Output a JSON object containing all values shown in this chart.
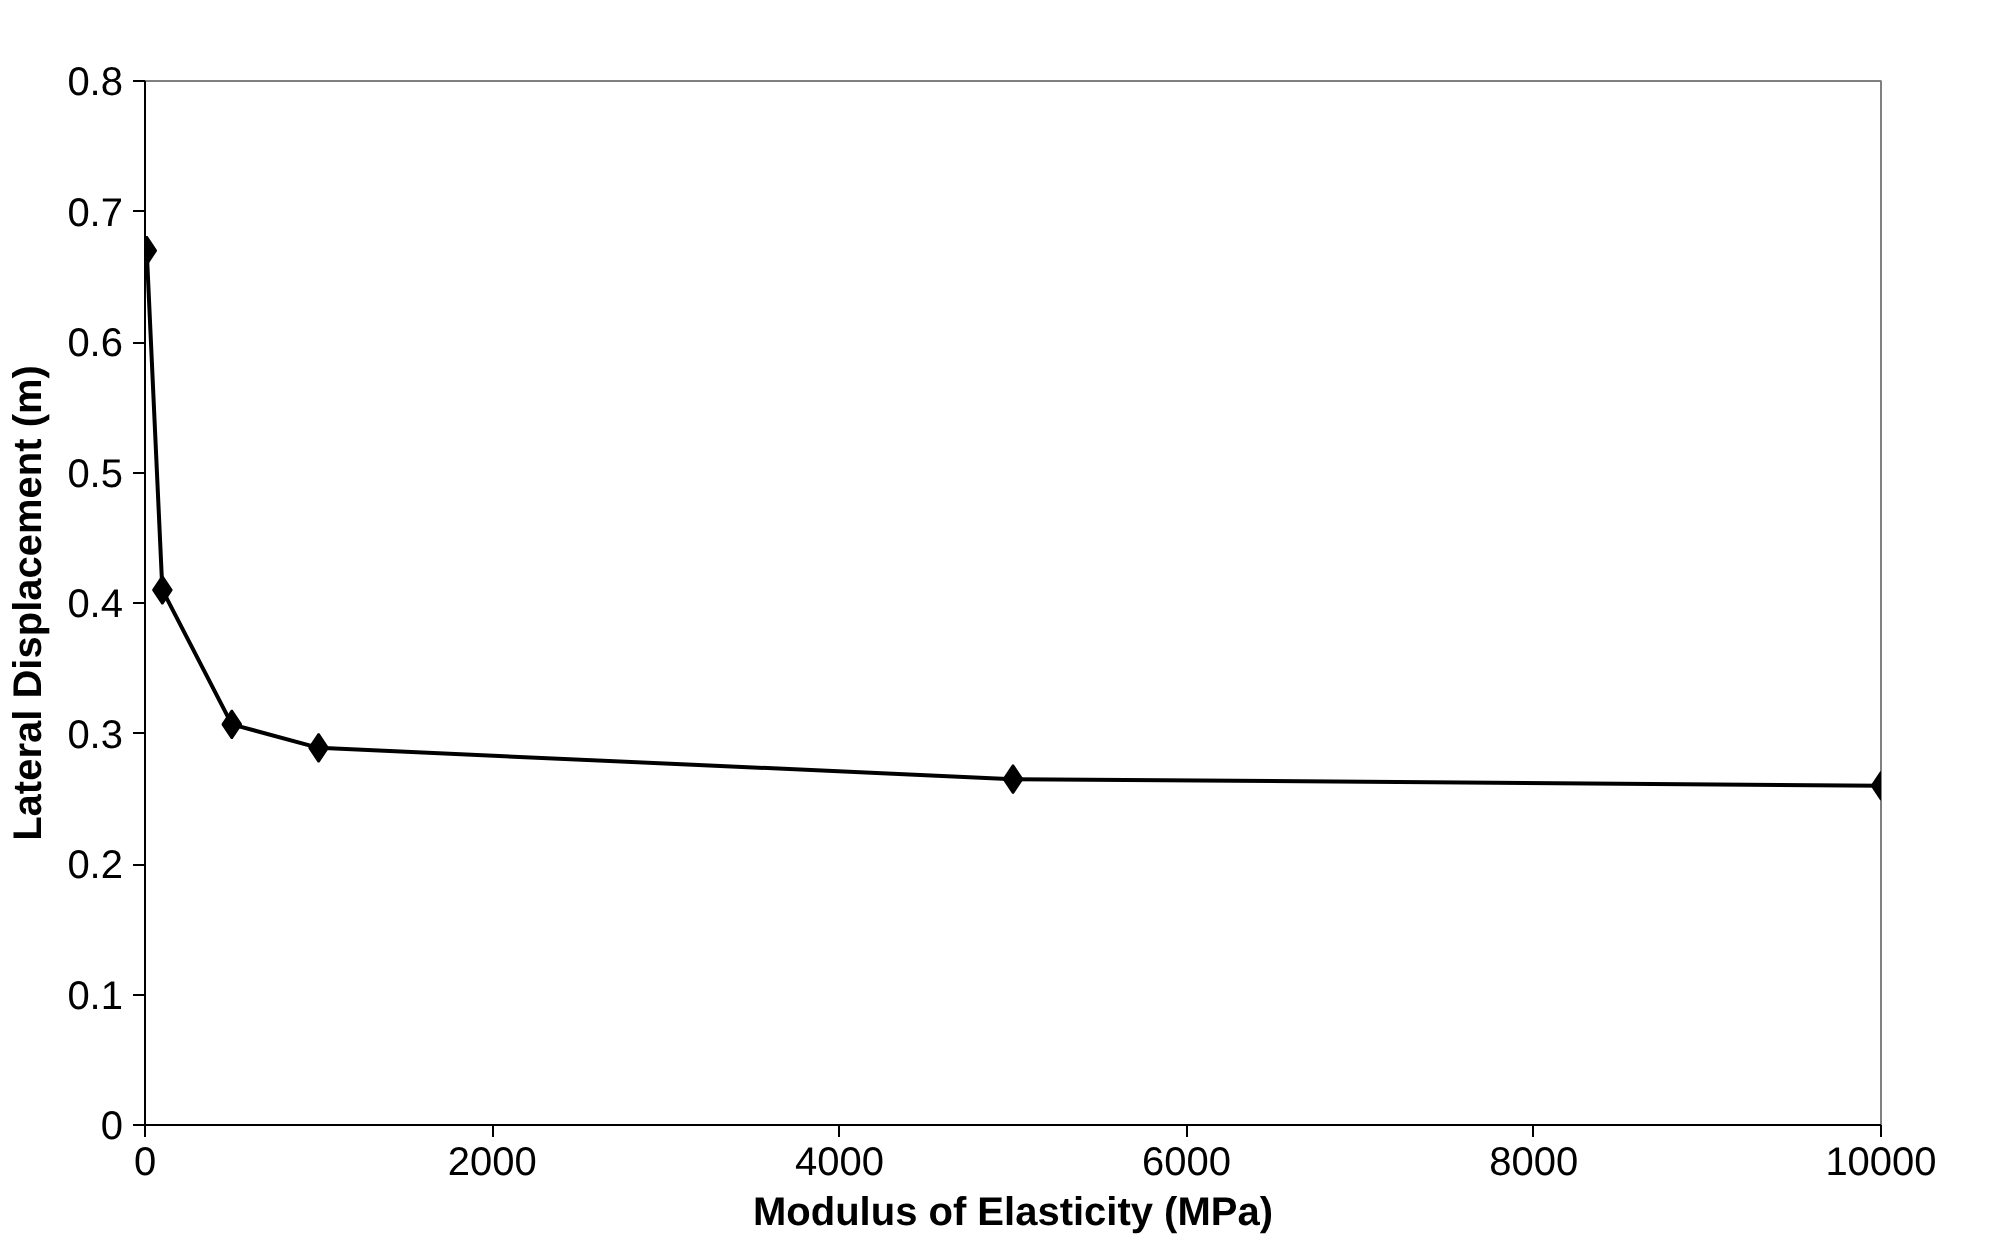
{
  "chart_data": {
    "type": "line",
    "xlabel": "Modulus of Elasticity (MPa)",
    "ylabel": "Lateral Displacement (m)",
    "x": [
      10,
      100,
      500,
      1000,
      5000,
      10000
    ],
    "series": [
      {
        "color": "#000000",
        "values": [
          0.67,
          0.41,
          0.307,
          0.289,
          0.265,
          0.26
        ]
      }
    ],
    "xlim": [
      0,
      10000
    ],
    "xticks": [
      0,
      2000,
      4000,
      6000,
      8000,
      10000
    ],
    "ylim": [
      0,
      0.8
    ],
    "yticks": [
      0,
      0.1,
      0.2,
      0.3,
      0.4,
      0.5,
      0.6,
      0.7,
      0.8
    ],
    "grid": false,
    "marker": "diamond",
    "line_style": "solid"
  }
}
